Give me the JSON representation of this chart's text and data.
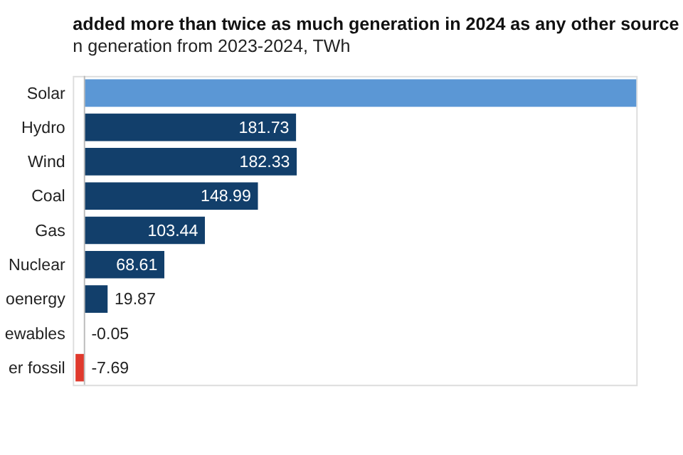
{
  "chart_data": {
    "type": "bar",
    "orientation": "horizontal",
    "title": "added more than twice as much generation in 2024 as any other source",
    "subtitle": "n generation from 2023-2024, TWh",
    "categories": [
      "Solar",
      "Hydro",
      "Wind",
      "Coal",
      "Gas",
      "Nuclear",
      "oenergy",
      "ewables",
      "er fossil"
    ],
    "values": [
      474,
      181.73,
      182.33,
      148.99,
      103.44,
      68.61,
      19.87,
      -0.05,
      -7.69
    ],
    "value_labels": [
      null,
      "181.73",
      "182.33",
      "148.99",
      "103.44",
      "68.61",
      "19.87",
      "-0.05",
      "-7.69"
    ],
    "colors": [
      "#5b97d5",
      "#123f6b",
      "#123f6b",
      "#123f6b",
      "#123f6b",
      "#123f6b",
      "#123f6b",
      "#8a2a2a",
      "#e0392d"
    ],
    "xlim": [
      -10,
      474
    ],
    "tick_labels": "y",
    "grid": false
  }
}
